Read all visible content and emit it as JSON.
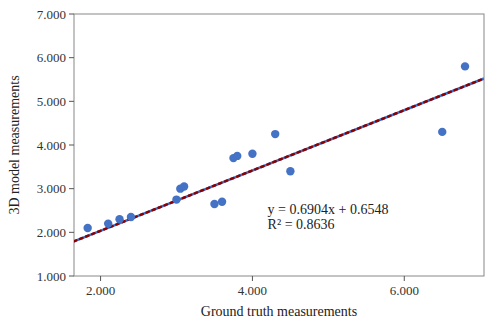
{
  "chart_data": {
    "type": "scatter",
    "xlabel": "Ground truth measurements",
    "ylabel": "3D model measurements",
    "xlim": [
      1.65,
      7.05
    ],
    "ylim": [
      1.0,
      7.0
    ],
    "xticks": [
      {
        "value": 2.0,
        "label": "2.000"
      },
      {
        "value": 4.0,
        "label": "4.000"
      },
      {
        "value": 6.0,
        "label": "6.000"
      }
    ],
    "yticks": [
      {
        "value": 1.0,
        "label": "1.000"
      },
      {
        "value": 2.0,
        "label": "2.000"
      },
      {
        "value": 3.0,
        "label": "3.000"
      },
      {
        "value": 4.0,
        "label": "4.000"
      },
      {
        "value": 5.0,
        "label": "5.000"
      },
      {
        "value": 6.0,
        "label": "6.000"
      },
      {
        "value": 7.0,
        "label": "7.000"
      }
    ],
    "grid": false,
    "series": [
      {
        "type": "line",
        "color": "#4472C4",
        "line_style": "solid",
        "x": [
          1.65,
          7.05
        ],
        "values": [
          1.79396,
          5.52212
        ]
      },
      {
        "type": "line",
        "color": "#8B0000",
        "line_style": "dotted",
        "x": [
          1.65,
          7.05
        ],
        "values": [
          1.79396,
          5.52212
        ]
      },
      {
        "type": "scatter",
        "color": "#4472C4",
        "marker": "circle",
        "x": [
          1.83,
          2.1,
          2.25,
          2.4,
          3.0,
          3.05,
          3.1,
          3.5,
          3.6,
          3.75,
          3.8,
          4.0,
          4.3,
          4.5,
          6.5,
          6.8
        ],
        "values": [
          2.1,
          2.2,
          2.3,
          2.35,
          2.75,
          3.0,
          3.05,
          2.65,
          2.7,
          3.7,
          3.75,
          3.8,
          4.25,
          3.4,
          4.3,
          5.8
        ]
      }
    ],
    "annotations": [
      {
        "text": "y = 0.6904x + 0.6548\nR² = 0.8636",
        "x": 4.2,
        "y": 2.0
      }
    ]
  }
}
